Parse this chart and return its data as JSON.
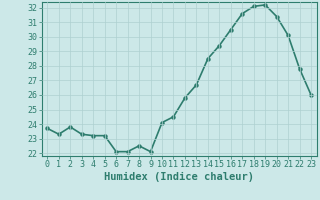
{
  "xlabel": "Humidex (Indice chaleur)",
  "ylabel": "",
  "x": [
    0,
    1,
    2,
    3,
    4,
    5,
    6,
    7,
    8,
    9,
    10,
    11,
    12,
    13,
    14,
    15,
    16,
    17,
    18,
    19,
    20,
    21,
    22,
    23
  ],
  "y": [
    23.7,
    23.3,
    23.8,
    23.3,
    23.2,
    23.2,
    22.1,
    22.1,
    22.5,
    22.1,
    24.1,
    24.5,
    25.8,
    26.7,
    28.5,
    29.4,
    30.5,
    31.6,
    32.1,
    32.2,
    31.4,
    30.1,
    27.8,
    26.0
  ],
  "ylim": [
    21.8,
    32.4
  ],
  "xlim": [
    -0.5,
    23.5
  ],
  "yticks": [
    22,
    23,
    24,
    25,
    26,
    27,
    28,
    29,
    30,
    31,
    32
  ],
  "xticks": [
    0,
    1,
    2,
    3,
    4,
    5,
    6,
    7,
    8,
    9,
    10,
    11,
    12,
    13,
    14,
    15,
    16,
    17,
    18,
    19,
    20,
    21,
    22,
    23
  ],
  "line_color": "#2e7d6e",
  "marker": "o",
  "marker_size": 2.2,
  "line_width": 1.2,
  "bg_color": "#cce8e8",
  "grid_color": "#aed0d0",
  "axis_color": "#2e7d6e",
  "tick_color": "#2e7d6e",
  "label_color": "#2e7d6e",
  "xlabel_fontsize": 7.5,
  "tick_fontsize": 6.0
}
